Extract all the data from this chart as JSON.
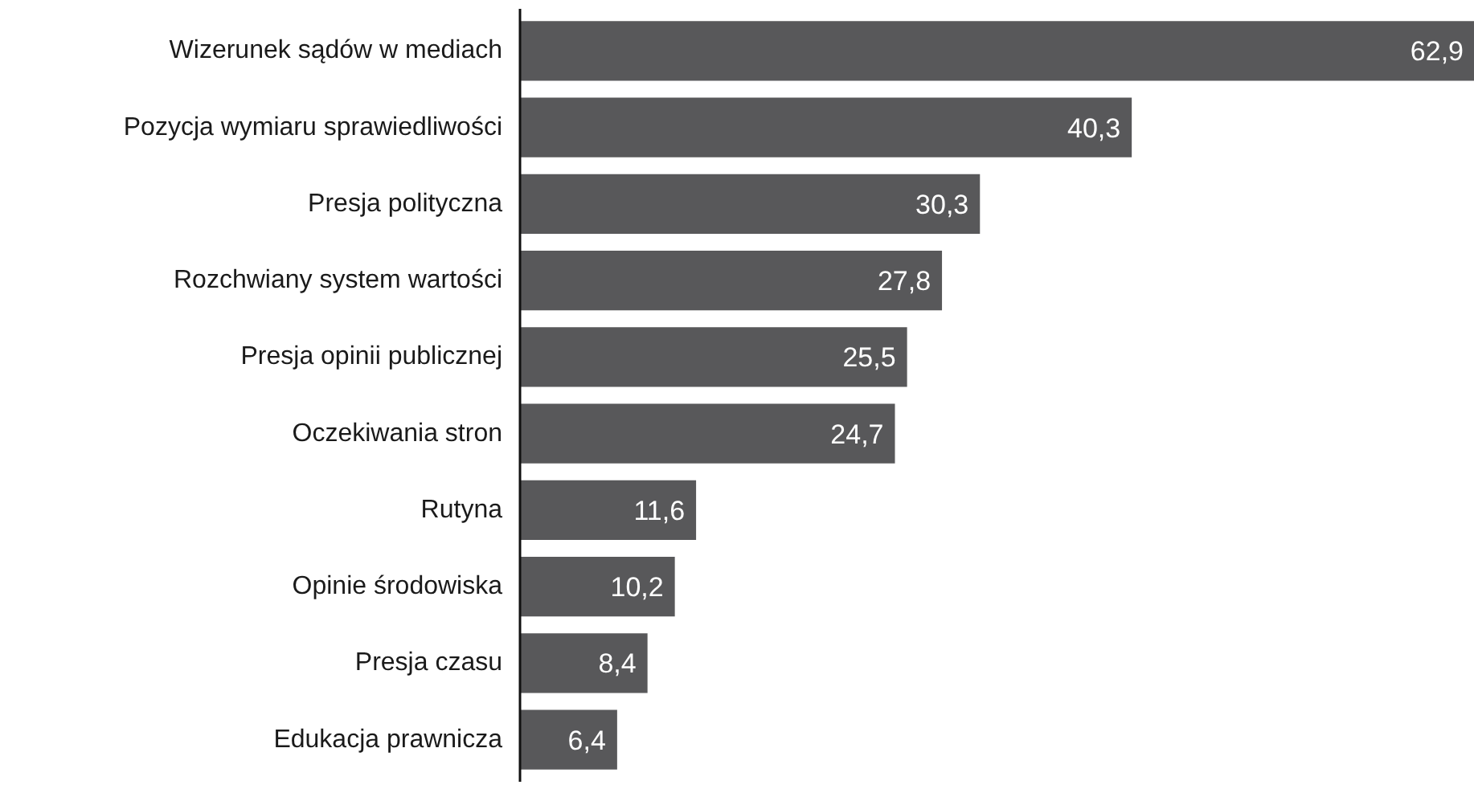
{
  "chart_data": {
    "type": "bar",
    "orientation": "horizontal",
    "data_labels": true,
    "tick_labels": "y",
    "categories": [
      "Wizerunek sądów w mediach",
      "Pozycja wymiaru sprawiedliwości",
      "Presja polityczna",
      "Rozchwiany system wartości",
      "Presja opinii publicznej",
      "Oczekiwania stron",
      "Rutyna",
      "Opinie środowiska",
      "Presja czasu",
      "Edukacja prawnicza"
    ],
    "values": [
      62.9,
      40.3,
      30.3,
      27.8,
      25.5,
      24.7,
      11.6,
      10.2,
      8.4,
      6.4
    ],
    "value_labels": [
      "62,9",
      "40,3",
      "30,3",
      "27,8",
      "25,5",
      "24,7",
      "11,6",
      "10,2",
      "8,4",
      "6,4"
    ],
    "color": "#58585a"
  }
}
